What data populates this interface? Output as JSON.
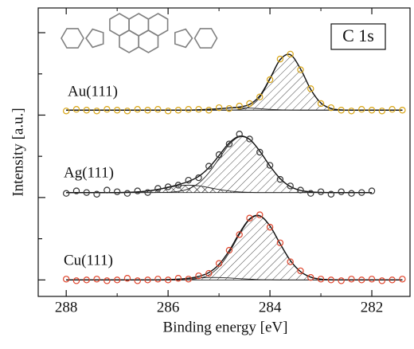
{
  "chart_data": {
    "type": "xps",
    "title": "C 1s",
    "xlabel": "Binding energy [eV]",
    "ylabel": "Intensity [a.u.]",
    "xlim": [
      288.55,
      281.25
    ],
    "xticks": [
      288,
      286,
      284,
      282
    ],
    "xminorticks": [
      287,
      285,
      283
    ],
    "ylim": [
      -0.2,
      3.3
    ],
    "yticks": [
      0,
      0.5,
      1,
      1.5,
      2,
      2.5,
      3
    ],
    "x": [
      288,
      287.8,
      287.6,
      287.4,
      287.2,
      287,
      286.8,
      286.6,
      286.4,
      286.2,
      286,
      285.8,
      285.6,
      285.4,
      285.2,
      285,
      284.8,
      284.6,
      284.4,
      284.2,
      284,
      283.8,
      283.6,
      283.4,
      283.2,
      283,
      282.8,
      282.6,
      282.4,
      282.2,
      282,
      281.8,
      281.6,
      281.4
    ],
    "series": [
      {
        "name": "Au(111)",
        "color": "#d9a514",
        "baseline": 2.06,
        "values": [
          2.05,
          2.07,
          2.06,
          2.05,
          2.07,
          2.06,
          2.05,
          2.07,
          2.06,
          2.07,
          2.05,
          2.06,
          2.07,
          2.07,
          2.06,
          2.09,
          2.08,
          2.11,
          2.14,
          2.22,
          2.43,
          2.68,
          2.74,
          2.55,
          2.32,
          2.14,
          2.09,
          2.06,
          2.05,
          2.07,
          2.06,
          2.05,
          2.07,
          2.06
        ],
        "fit": [
          2.06,
          2.06,
          2.06,
          2.06,
          2.06,
          2.06,
          2.06,
          2.06,
          2.06,
          2.06,
          2.06,
          2.06,
          2.06,
          2.064,
          2.07,
          2.078,
          2.087,
          2.098,
          2.13,
          2.233,
          2.444,
          2.673,
          2.733,
          2.561,
          2.313,
          2.147,
          2.08,
          2.063,
          2.06,
          2.06,
          2.06,
          2.06,
          2.06,
          2.06
        ],
        "components": [
          {
            "hatch": "diagonal",
            "values": [
              2.06,
              2.06,
              2.06,
              2.06,
              2.06,
              2.06,
              2.06,
              2.06,
              2.06,
              2.06,
              2.06,
              2.06,
              2.06,
              2.06,
              2.06,
              2.06,
              2.061,
              2.068,
              2.104,
              2.215,
              2.434,
              2.669,
              2.732,
              2.561,
              2.313,
              2.147,
              2.08,
              2.063,
              2.06,
              2.06,
              2.06,
              2.06,
              2.06,
              2.06
            ]
          },
          {
            "hatch": "none",
            "values": [
              2.06,
              2.06,
              2.06,
              2.06,
              2.06,
              2.06,
              2.06,
              2.06,
              2.06,
              2.06,
              2.06,
              2.06,
              2.06,
              2.064,
              2.07,
              2.078,
              2.086,
              2.09,
              2.086,
              2.078,
              2.07,
              2.064,
              2.061,
              2.06,
              2.06,
              2.06,
              2.06,
              2.06,
              2.06,
              2.06,
              2.06,
              2.06,
              2.06,
              2.06
            ]
          }
        ]
      },
      {
        "name": "Ag(111)",
        "color": "#333333",
        "baseline": 1.06,
        "values": [
          1.05,
          1.08,
          1.06,
          1.04,
          1.09,
          1.07,
          1.05,
          1.08,
          1.06,
          1.11,
          1.13,
          1.15,
          1.21,
          1.24,
          1.38,
          1.52,
          1.65,
          1.77,
          1.71,
          1.55,
          1.39,
          1.22,
          1.14,
          1.09,
          1.05,
          1.07,
          1.04,
          1.07,
          1.05,
          1.06,
          1.08,
          null,
          null,
          null
        ],
        "fit": [
          1.06,
          1.06,
          1.06,
          1.06,
          1.06,
          1.06,
          1.063,
          1.068,
          1.079,
          1.098,
          1.125,
          1.156,
          1.195,
          1.256,
          1.361,
          1.509,
          1.662,
          1.744,
          1.706,
          1.563,
          1.382,
          1.23,
          1.133,
          1.086,
          1.068,
          1.062,
          1.06,
          1.06,
          1.06,
          1.06,
          1.06,
          null,
          null,
          null
        ],
        "components": [
          {
            "hatch": "diagonal",
            "values": [
              1.06,
              1.06,
              1.06,
              1.06,
              1.06,
              1.06,
              1.06,
              1.06,
              1.06,
              1.061,
              1.064,
              1.074,
              1.105,
              1.174,
              1.3,
              1.472,
              1.643,
              1.736,
              1.703,
              1.563,
              1.382,
              1.23,
              1.133,
              1.086,
              1.068,
              1.062,
              1.06,
              1.06,
              1.06,
              1.06,
              1.06,
              null,
              null,
              null
            ]
          },
          {
            "hatch": "cross",
            "values": [
              1.06,
              1.06,
              1.06,
              1.06,
              1.06,
              1.06,
              1.063,
              1.068,
              1.079,
              1.097,
              1.121,
              1.142,
              1.15,
              1.142,
              1.121,
              1.097,
              1.079,
              1.068,
              1.063,
              1.06,
              1.06,
              1.06,
              1.06,
              1.06,
              1.06,
              1.06,
              1.06,
              1.06,
              1.06,
              1.06,
              1.06,
              null,
              null,
              null
            ]
          }
        ]
      },
      {
        "name": "Cu(111)",
        "color": "#e0452c",
        "baseline": 0,
        "values": [
          0.01,
          -0.01,
          0,
          0.01,
          -0.01,
          0,
          0.02,
          -0.01,
          0,
          0.01,
          0,
          0.02,
          0.01,
          0.05,
          0.08,
          0.2,
          0.36,
          0.55,
          0.75,
          0.79,
          0.64,
          0.45,
          0.22,
          0.11,
          0.03,
          0.01,
          0,
          -0.01,
          0.01,
          0,
          0.01,
          -0.01,
          0,
          0.01
        ],
        "fit": [
          0,
          0,
          0,
          0,
          0,
          0,
          0,
          0,
          0,
          0,
          0.004,
          0.009,
          0.02,
          0.042,
          0.089,
          0.188,
          0.355,
          0.567,
          0.74,
          0.779,
          0.655,
          0.439,
          0.236,
          0.101,
          0.034,
          0.009,
          0.002,
          0,
          0,
          0,
          0,
          0,
          0,
          0
        ],
        "components": [
          {
            "hatch": "diagonal",
            "values": [
              0,
              0,
              0,
              0,
              0,
              0,
              0,
              0,
              0,
              0,
              0,
              0,
              0.004,
              0.018,
              0.06,
              0.159,
              0.331,
              0.551,
              0.731,
              0.775,
              0.653,
              0.439,
              0.236,
              0.101,
              0.034,
              0.009,
              0.002,
              0,
              0,
              0,
              0,
              0,
              0,
              0
            ]
          },
          {
            "hatch": "none",
            "values": [
              0,
              0,
              0,
              0,
              0,
              0,
              0,
              0,
              0,
              0,
              0.004,
              0.009,
              0.016,
              0.024,
              0.029,
              0.029,
              0.024,
              0.016,
              0.009,
              0.004,
              0.002,
              0,
              0,
              0,
              0,
              0,
              0,
              0,
              0,
              0,
              0,
              0,
              0,
              0
            ]
          }
        ]
      }
    ]
  }
}
